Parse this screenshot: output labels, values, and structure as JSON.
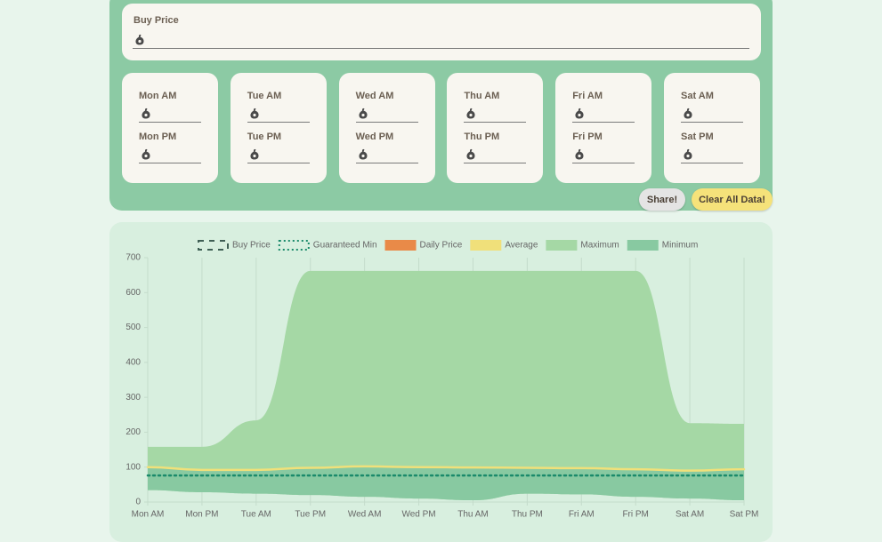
{
  "form": {
    "buy_price": {
      "label": "Buy Price"
    },
    "days": [
      {
        "am": "Mon AM",
        "pm": "Mon PM"
      },
      {
        "am": "Tue AM",
        "pm": "Tue PM"
      },
      {
        "am": "Wed AM",
        "pm": "Wed PM"
      },
      {
        "am": "Thu AM",
        "pm": "Thu PM"
      },
      {
        "am": "Fri AM",
        "pm": "Fri PM"
      },
      {
        "am": "Sat AM",
        "pm": "Sat PM"
      }
    ]
  },
  "buttons": {
    "share": "Share!",
    "clear": "Clear All Data!"
  },
  "chart_data": {
    "type": "line",
    "categories": [
      "Mon AM",
      "Mon PM",
      "Tue AM",
      "Tue PM",
      "Wed AM",
      "Wed PM",
      "Thu AM",
      "Thu PM",
      "Fri AM",
      "Fri PM",
      "Sat AM",
      "Sat PM"
    ],
    "series": [
      {
        "name": "Buy Price",
        "color": "#3f5f55",
        "dash": "dashed",
        "values": [
          null,
          null,
          null,
          null,
          null,
          null,
          null,
          null,
          null,
          null,
          null,
          null
        ]
      },
      {
        "name": "Guaranteed Min",
        "color": "#1b8a6b",
        "dash": "dotted",
        "values": [
          76,
          76,
          76,
          76,
          76,
          76,
          76,
          76,
          76,
          76,
          76,
          76
        ]
      },
      {
        "name": "Daily Price",
        "color": "#e98a48",
        "values": [
          null,
          null,
          null,
          null,
          null,
          null,
          null,
          null,
          null,
          null,
          null,
          null
        ]
      },
      {
        "name": "Average",
        "color": "#f0e07a",
        "values": [
          100,
          92,
          92,
          98,
          102,
          100,
          99,
          98,
          97,
          94,
          90,
          94
        ]
      },
      {
        "name": "Maximum",
        "color": "#a5d8a5",
        "fill": true,
        "values": [
          158,
          158,
          234,
          662,
          662,
          662,
          662,
          662,
          662,
          662,
          226,
          224
        ]
      },
      {
        "name": "Minimum",
        "color": "#88c9a1",
        "fill": true,
        "values": [
          34,
          28,
          24,
          20,
          15,
          10,
          5,
          24,
          22,
          15,
          10,
          5
        ]
      }
    ],
    "ylim": [
      0,
      700
    ],
    "yticks": [
      0,
      100,
      200,
      300,
      400,
      500,
      600,
      700
    ],
    "grid": "x"
  }
}
